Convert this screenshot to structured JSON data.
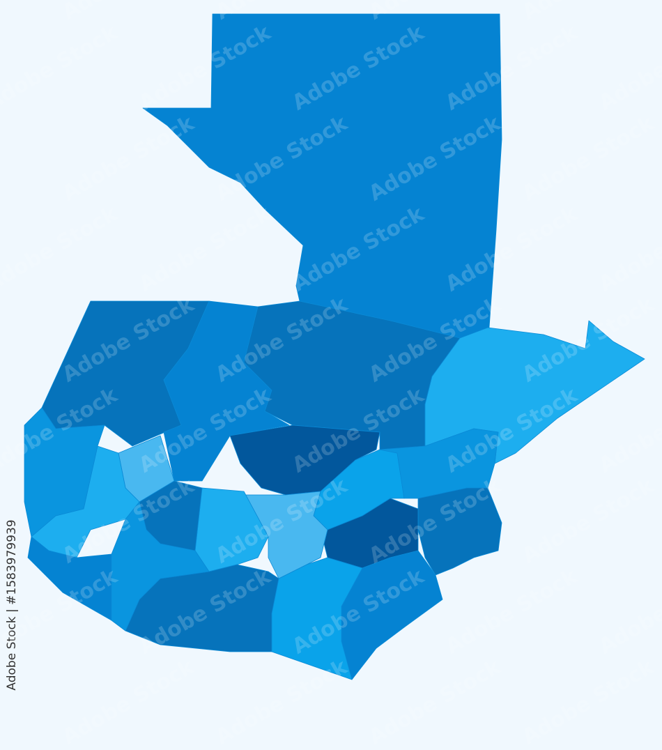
{
  "credit": "Adobe Stock | #1583979939",
  "watermark": "Adobe Stock",
  "colors": {
    "background": "#f0f8fe",
    "shade_1": "#0583d2",
    "shade_2": "#0673bb",
    "shade_3": "#1daeef",
    "shade_4": "#49b8f0",
    "shade_5": "#02579c",
    "shade_6": "#0a95df",
    "shade_7": "#0aa3ea"
  },
  "regions": [
    {
      "id": "region-north",
      "shade": "shade_1"
    },
    {
      "id": "region-northwest",
      "shade": "shade_2"
    },
    {
      "id": "region-north-central-west",
      "shade": "shade_1"
    },
    {
      "id": "region-north-central",
      "shade": "shade_2"
    },
    {
      "id": "region-east-coast",
      "shade": "shade_3"
    },
    {
      "id": "region-central-dark",
      "shade": "shade_5"
    },
    {
      "id": "region-central-east",
      "shade": "shade_7"
    },
    {
      "id": "region-east",
      "shade": "shade_6"
    },
    {
      "id": "region-southeast",
      "shade": "shade_2"
    },
    {
      "id": "region-south-central-dark",
      "shade": "shade_5"
    },
    {
      "id": "region-southeast-coast",
      "shade": "shade_1"
    },
    {
      "id": "region-south-central",
      "shade": "shade_7"
    },
    {
      "id": "region-central",
      "shade": "shade_4"
    },
    {
      "id": "region-central-west",
      "shade": "shade_3"
    },
    {
      "id": "region-south-coast",
      "shade": "shade_2"
    },
    {
      "id": "region-west-highland",
      "shade": "shade_4"
    },
    {
      "id": "region-west",
      "shade": "shade_3"
    },
    {
      "id": "region-far-west",
      "shade": "shade_6"
    },
    {
      "id": "region-southwest-coast",
      "shade": "shade_1"
    },
    {
      "id": "region-southwest",
      "shade": "shade_6"
    },
    {
      "id": "region-west-central",
      "shade": "shade_2"
    }
  ]
}
